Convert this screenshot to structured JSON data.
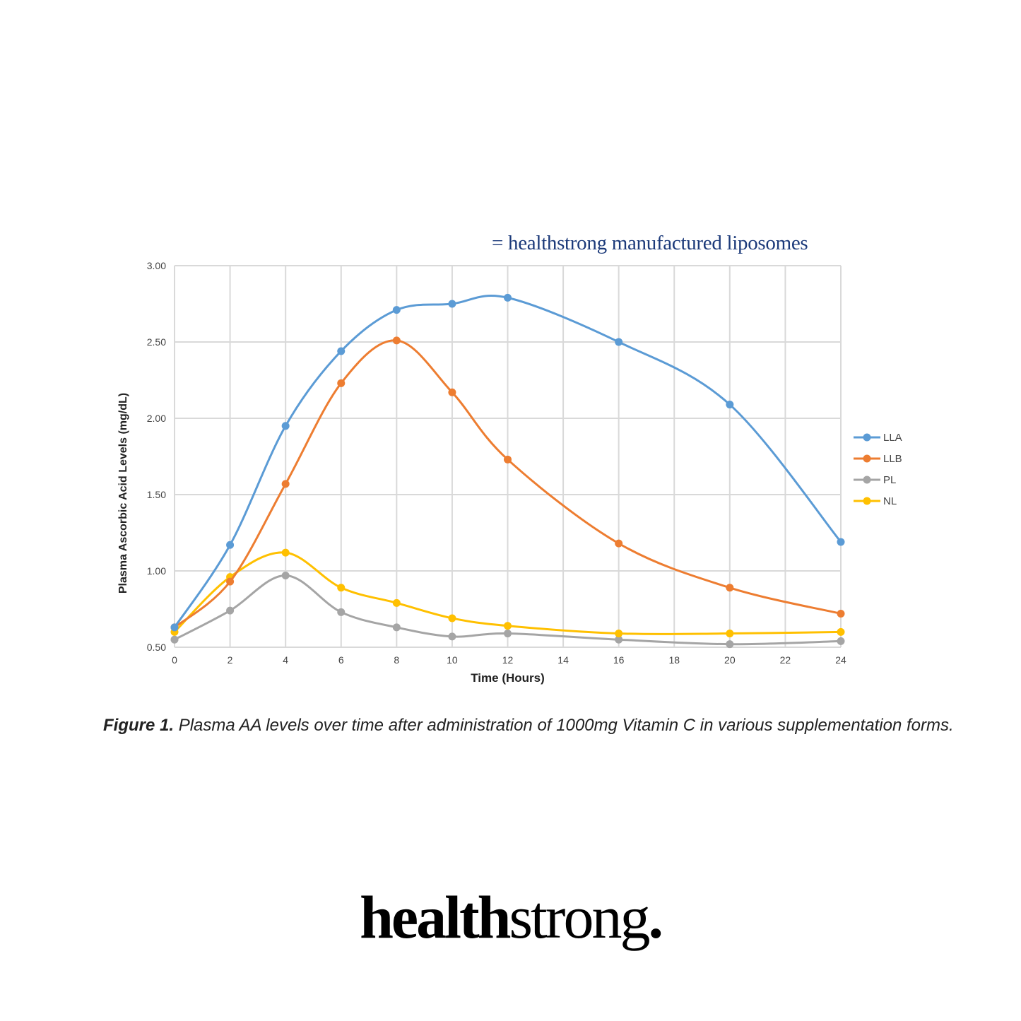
{
  "annotation": "= healthstrong manufactured liposomes",
  "caption": {
    "label": "Figure 1.",
    "text": " Plasma AA levels over time after administration of 1000mg Vitamin C in various supplementation forms."
  },
  "logo": {
    "bold": "health",
    "light": "strong",
    "dot": "."
  },
  "chart_data": {
    "type": "line",
    "xlabel": "Time (Hours)",
    "ylabel": "Plasma Ascorbic Acid Levels (mg/dL)",
    "xlim": [
      0,
      24
    ],
    "ylim": [
      0.5,
      3.0
    ],
    "xticks": [
      "0",
      "2",
      "4",
      "6",
      "8",
      "10",
      "12",
      "14",
      "16",
      "18",
      "20",
      "22",
      "24"
    ],
    "yticks": [
      "0.50",
      "1.00",
      "1.50",
      "2.00",
      "2.50",
      "3.00"
    ],
    "grid": true,
    "smooth": true,
    "legend": "right",
    "x": [
      0,
      2,
      4,
      6,
      8,
      10,
      12,
      16,
      20,
      24
    ],
    "series": [
      {
        "name": "LLA",
        "color": "#5b9bd5",
        "values": [
          0.63,
          1.17,
          1.95,
          2.44,
          2.71,
          2.75,
          2.79,
          2.5,
          2.09,
          1.19
        ]
      },
      {
        "name": "LLB",
        "color": "#ed7d31",
        "values": [
          0.63,
          0.93,
          1.57,
          2.23,
          2.51,
          2.17,
          1.73,
          1.18,
          0.89,
          0.72
        ]
      },
      {
        "name": "PL",
        "color": "#a5a5a5",
        "values": [
          0.55,
          0.74,
          0.97,
          0.73,
          0.63,
          0.57,
          0.59,
          0.55,
          0.52,
          0.54
        ]
      },
      {
        "name": "NL",
        "color": "#ffc000",
        "values": [
          0.6,
          0.96,
          1.12,
          0.89,
          0.79,
          0.69,
          0.64,
          0.59,
          0.59,
          0.6
        ]
      }
    ]
  }
}
